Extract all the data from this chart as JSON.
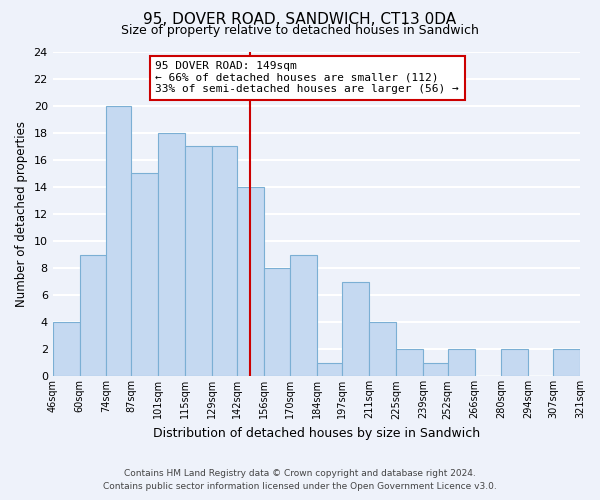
{
  "title": "95, DOVER ROAD, SANDWICH, CT13 0DA",
  "subtitle": "Size of property relative to detached houses in Sandwich",
  "xlabel": "Distribution of detached houses by size in Sandwich",
  "ylabel": "Number of detached properties",
  "bin_edges": [
    46,
    60,
    74,
    87,
    101,
    115,
    129,
    142,
    156,
    170,
    184,
    197,
    211,
    225,
    239,
    252,
    266,
    280,
    294,
    307,
    321
  ],
  "counts": [
    4,
    9,
    20,
    15,
    18,
    17,
    17,
    14,
    8,
    9,
    1,
    7,
    4,
    2,
    1,
    2,
    0,
    2,
    0,
    2
  ],
  "tick_labels": [
    "46sqm",
    "60sqm",
    "74sqm",
    "87sqm",
    "101sqm",
    "115sqm",
    "129sqm",
    "142sqm",
    "156sqm",
    "170sqm",
    "184sqm",
    "197sqm",
    "211sqm",
    "225sqm",
    "239sqm",
    "252sqm",
    "266sqm",
    "280sqm",
    "294sqm",
    "307sqm",
    "321sqm"
  ],
  "bar_color": "#c5d9f1",
  "bar_edge_color": "#7bafd4",
  "vline_x": 149,
  "vline_color": "#cc0000",
  "annotation_line1": "95 DOVER ROAD: 149sqm",
  "annotation_line2": "← 66% of detached houses are smaller (112)",
  "annotation_line3": "33% of semi-detached houses are larger (56) →",
  "box_color": "white",
  "box_edge_color": "#cc0000",
  "ylim": [
    0,
    24
  ],
  "yticks": [
    0,
    2,
    4,
    6,
    8,
    10,
    12,
    14,
    16,
    18,
    20,
    22,
    24
  ],
  "footer1": "Contains HM Land Registry data © Crown copyright and database right 2024.",
  "footer2": "Contains public sector information licensed under the Open Government Licence v3.0.",
  "background_color": "#eef2fa",
  "grid_color": "white"
}
